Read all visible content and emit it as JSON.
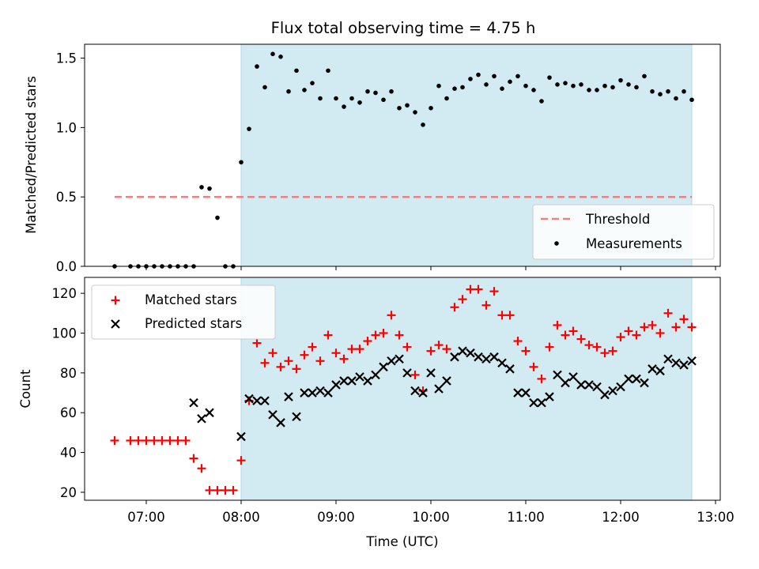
{
  "title": "Flux total observing time = 4.75 h",
  "xlabel": "Time (UTC)",
  "colors": {
    "shade": "#add8e6",
    "threshold": "#f08080",
    "measurements": "#000000",
    "matched": "#ff0000",
    "predicted": "#000000"
  },
  "chart_data": [
    {
      "type": "scatter",
      "ylabel": "Matched/Predicted stars",
      "ylim": [
        0,
        1.6
      ],
      "yticks": [
        "0.0",
        "0.5",
        "1.0",
        "1.5"
      ],
      "ytick_values": [
        0,
        0.5,
        1.0,
        1.5
      ],
      "xlim_hours": [
        6.35,
        13.05
      ],
      "shaded_span": [
        "08:00",
        "12:45"
      ],
      "legend": {
        "position": "lower right",
        "entries": [
          "Threshold",
          "Measurements"
        ]
      },
      "threshold": {
        "name": "Threshold",
        "value": 0.5,
        "x_range": [
          "06:40",
          "12:45"
        ],
        "style": "dashed"
      },
      "series": [
        {
          "name": "Measurements",
          "marker": "dot",
          "x": [
            "06:40",
            "06:50",
            "06:55",
            "07:00",
            "07:05",
            "07:10",
            "07:15",
            "07:20",
            "07:25",
            "07:30",
            "07:35",
            "07:40",
            "07:45",
            "07:50",
            "07:55",
            "08:00",
            "08:05",
            "08:10",
            "08:15",
            "08:20",
            "08:25",
            "08:30",
            "08:35",
            "08:40",
            "08:45",
            "08:50",
            "08:55",
            "09:00",
            "09:05",
            "09:10",
            "09:15",
            "09:20",
            "09:25",
            "09:30",
            "09:35",
            "09:40",
            "09:45",
            "09:50",
            "09:55",
            "10:00",
            "10:05",
            "10:10",
            "10:15",
            "10:20",
            "10:25",
            "10:30",
            "10:35",
            "10:40",
            "10:45",
            "10:50",
            "10:55",
            "11:00",
            "11:05",
            "11:10",
            "11:15",
            "11:20",
            "11:25",
            "11:30",
            "11:35",
            "11:40",
            "11:45",
            "11:50",
            "11:55",
            "12:00",
            "12:05",
            "12:10",
            "12:15",
            "12:20",
            "12:25",
            "12:30",
            "12:35",
            "12:40",
            "12:45"
          ],
          "y": [
            0.0,
            0.0,
            0.0,
            0.0,
            0.0,
            0.0,
            0.0,
            0.0,
            0.0,
            0.0,
            0.57,
            0.56,
            0.35,
            0.0,
            0.0,
            0.75,
            0.99,
            1.44,
            1.29,
            1.53,
            1.51,
            1.26,
            1.41,
            1.27,
            1.32,
            1.21,
            1.41,
            1.21,
            1.15,
            1.21,
            1.18,
            1.26,
            1.25,
            1.2,
            1.26,
            1.14,
            1.16,
            1.11,
            1.02,
            1.14,
            1.3,
            1.21,
            1.28,
            1.29,
            1.35,
            1.38,
            1.31,
            1.37,
            1.28,
            1.33,
            1.37,
            1.3,
            1.27,
            1.19,
            1.36,
            1.31,
            1.32,
            1.3,
            1.31,
            1.27,
            1.27,
            1.3,
            1.29,
            1.34,
            1.31,
            1.29,
            1.37,
            1.26,
            1.24,
            1.26,
            1.21,
            1.26,
            1.2
          ]
        }
      ]
    },
    {
      "type": "scatter",
      "ylabel": "Count",
      "ylim": [
        16,
        128
      ],
      "yticks": [
        "20",
        "40",
        "60",
        "80",
        "100",
        "120"
      ],
      "ytick_values": [
        20,
        40,
        60,
        80,
        100,
        120
      ],
      "xlim_hours": [
        6.35,
        13.05
      ],
      "xticks": [
        "07:00",
        "08:00",
        "09:00",
        "10:00",
        "11:00",
        "12:00",
        "13:00"
      ],
      "shaded_span": [
        "08:00",
        "12:45"
      ],
      "legend": {
        "position": "upper left",
        "entries": [
          "Matched stars",
          "Predicted stars"
        ]
      },
      "series": [
        {
          "name": "Matched stars",
          "marker": "plus",
          "x": [
            "06:40",
            "06:50",
            "06:55",
            "07:00",
            "07:05",
            "07:10",
            "07:15",
            "07:20",
            "07:25",
            "07:30",
            "07:35",
            "07:40",
            "07:45",
            "07:50",
            "07:55",
            "08:00",
            "08:05",
            "08:10",
            "08:15",
            "08:20",
            "08:25",
            "08:30",
            "08:35",
            "08:40",
            "08:45",
            "08:50",
            "08:55",
            "09:00",
            "09:05",
            "09:10",
            "09:15",
            "09:20",
            "09:25",
            "09:30",
            "09:35",
            "09:40",
            "09:45",
            "09:50",
            "09:55",
            "10:00",
            "10:05",
            "10:10",
            "10:15",
            "10:20",
            "10:25",
            "10:30",
            "10:35",
            "10:40",
            "10:45",
            "10:50",
            "10:55",
            "11:00",
            "11:05",
            "11:10",
            "11:15",
            "11:20",
            "11:25",
            "11:30",
            "11:35",
            "11:40",
            "11:45",
            "11:50",
            "11:55",
            "12:00",
            "12:05",
            "12:10",
            "12:15",
            "12:20",
            "12:25",
            "12:30",
            "12:35",
            "12:40",
            "12:45"
          ],
          "y": [
            46,
            46,
            46,
            46,
            46,
            46,
            46,
            46,
            46,
            37,
            32,
            21,
            21,
            21,
            21,
            36,
            66,
            95,
            85,
            90,
            83,
            86,
            82,
            89,
            93,
            86,
            99,
            90,
            87,
            92,
            92,
            96,
            99,
            100,
            109,
            99,
            93,
            79,
            71,
            91,
            94,
            92,
            113,
            117,
            122,
            122,
            114,
            121,
            109,
            109,
            96,
            91,
            83,
            77,
            93,
            104,
            99,
            101,
            97,
            94,
            93,
            90,
            91,
            98,
            101,
            99,
            103,
            104,
            100,
            110,
            103,
            107,
            103
          ]
        },
        {
          "name": "Predicted stars",
          "marker": "x",
          "x": [
            "07:30",
            "07:35",
            "07:40",
            "08:00",
            "08:05",
            "08:10",
            "08:15",
            "08:20",
            "08:25",
            "08:30",
            "08:35",
            "08:40",
            "08:45",
            "08:50",
            "08:55",
            "09:00",
            "09:05",
            "09:10",
            "09:15",
            "09:20",
            "09:25",
            "09:30",
            "09:35",
            "09:40",
            "09:45",
            "09:50",
            "09:55",
            "10:00",
            "10:05",
            "10:10",
            "10:15",
            "10:20",
            "10:25",
            "10:30",
            "10:35",
            "10:40",
            "10:45",
            "10:50",
            "10:55",
            "11:00",
            "11:05",
            "11:10",
            "11:15",
            "11:20",
            "11:25",
            "11:30",
            "11:35",
            "11:40",
            "11:45",
            "11:50",
            "11:55",
            "12:00",
            "12:05",
            "12:10",
            "12:15",
            "12:20",
            "12:25",
            "12:30",
            "12:35",
            "12:40",
            "12:45"
          ],
          "y": [
            65,
            57,
            60,
            48,
            67,
            66,
            66,
            59,
            55,
            68,
            58,
            70,
            70,
            71,
            70,
            74,
            76,
            76,
            78,
            76,
            79,
            83,
            86,
            87,
            80,
            71,
            70,
            80,
            72,
            76,
            88,
            91,
            90,
            88,
            87,
            88,
            85,
            82,
            70,
            70,
            65,
            65,
            68,
            79,
            75,
            78,
            74,
            74,
            73,
            69,
            71,
            73,
            77,
            77,
            75,
            82,
            81,
            87,
            85,
            84,
            86
          ]
        }
      ]
    }
  ]
}
